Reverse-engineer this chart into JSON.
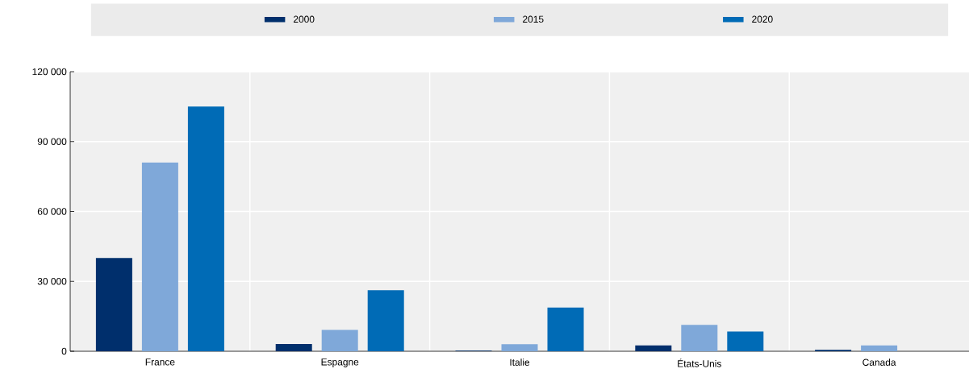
{
  "chart_data": {
    "type": "bar",
    "categories": [
      "France",
      "Espagne",
      "Italie",
      "États-Unis",
      "Canada"
    ],
    "series": [
      {
        "name": "2000",
        "color": "#002f6c",
        "values": [
          40000,
          3100,
          300,
          2500,
          600
        ]
      },
      {
        "name": "2015",
        "color": "#7fa8d9",
        "values": [
          81000,
          9200,
          3000,
          11300,
          2500
        ]
      },
      {
        "name": "2020",
        "color": "#006bb6",
        "values": [
          105000,
          26200,
          18800,
          8500,
          null
        ]
      }
    ],
    "ylim": [
      0,
      120000
    ],
    "yticks": [
      {
        "value": 0,
        "label": "0"
      },
      {
        "value": 30000,
        "label": "30 000"
      },
      {
        "value": 60000,
        "label": "60 000"
      },
      {
        "value": 90000,
        "label": "90 000"
      },
      {
        "value": 120000,
        "label": "120 000"
      }
    ],
    "grid": true,
    "legend": "top"
  }
}
